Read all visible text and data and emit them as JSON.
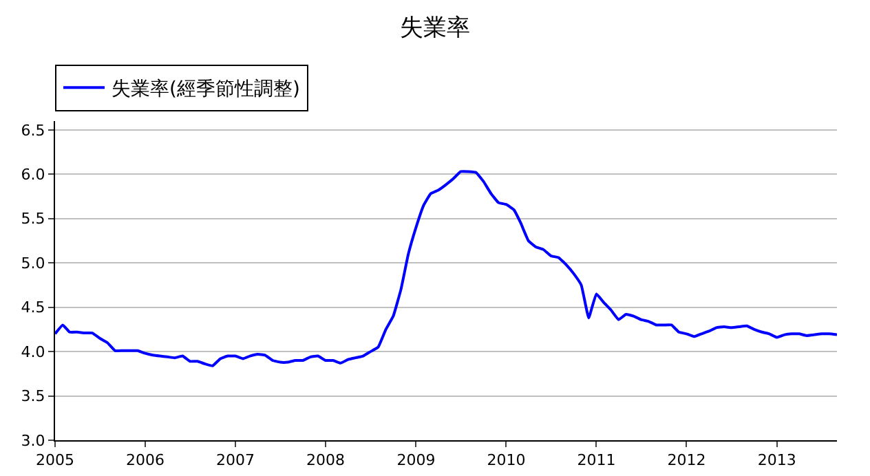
{
  "chart_data": {
    "type": "line",
    "title": "失業率",
    "legend": "top left",
    "grid": "y",
    "marker": "none",
    "line_style": "solid",
    "x": [
      "2005-01",
      "2005-02",
      "2005-03",
      "2005-04",
      "2005-05",
      "2005-06",
      "2005-07",
      "2005-08",
      "2005-09",
      "2005-10",
      "2005-11",
      "2005-12",
      "2006-01",
      "2006-02",
      "2006-03",
      "2006-04",
      "2006-05",
      "2006-06",
      "2006-07",
      "2006-08",
      "2006-09",
      "2006-10",
      "2006-11",
      "2006-12",
      "2007-01",
      "2007-02",
      "2007-03",
      "2007-04",
      "2007-05",
      "2007-06",
      "2007-07",
      "2007-08",
      "2007-09",
      "2007-10",
      "2007-11",
      "2007-12",
      "2008-01",
      "2008-02",
      "2008-03",
      "2008-04",
      "2008-05",
      "2008-06",
      "2008-07",
      "2008-08",
      "2008-09",
      "2008-10",
      "2008-11",
      "2008-12",
      "2009-01",
      "2009-02",
      "2009-03",
      "2009-04",
      "2009-05",
      "2009-06",
      "2009-07",
      "2009-08",
      "2009-09",
      "2009-10",
      "2009-11",
      "2009-12",
      "2010-01",
      "2010-02",
      "2010-03",
      "2010-04",
      "2010-05",
      "2010-06",
      "2010-07",
      "2010-08",
      "2010-09",
      "2010-10",
      "2010-11",
      "2010-12",
      "2011-01",
      "2011-02",
      "2011-03",
      "2011-04",
      "2011-05",
      "2011-06",
      "2011-07",
      "2011-08",
      "2011-09",
      "2011-10",
      "2011-11",
      "2011-12",
      "2012-01",
      "2012-02",
      "2012-03",
      "2012-04",
      "2012-05",
      "2012-06",
      "2012-07",
      "2012-08",
      "2012-09",
      "2012-10",
      "2012-11",
      "2012-12",
      "2013-01",
      "2013-02",
      "2013-03",
      "2013-04",
      "2013-05",
      "2013-06",
      "2013-07",
      "2013-08",
      "2013-09"
    ],
    "series": [
      {
        "name": "失業率(經季節性調整)",
        "color": "#0000ff",
        "values": [
          4.2,
          4.3,
          4.22,
          4.22,
          4.21,
          4.21,
          4.15,
          4.1,
          4.01,
          4.01,
          4.01,
          4.01,
          3.98,
          3.96,
          3.95,
          3.94,
          3.93,
          3.95,
          3.89,
          3.89,
          3.86,
          3.84,
          3.92,
          3.95,
          3.95,
          3.92,
          3.95,
          3.97,
          3.96,
          3.9,
          3.88,
          3.88,
          3.9,
          3.9,
          3.94,
          3.95,
          3.9,
          3.9,
          3.87,
          3.91,
          3.93,
          3.95,
          4.0,
          4.05,
          4.25,
          4.4,
          4.7,
          5.1,
          5.4,
          5.65,
          5.78,
          5.82,
          5.88,
          5.95,
          6.03,
          6.03,
          6.02,
          5.92,
          5.78,
          5.68,
          5.66,
          5.6,
          5.45,
          5.25,
          5.18,
          5.15,
          5.08,
          5.06,
          4.98,
          4.88,
          4.75,
          4.38,
          4.65,
          4.55,
          4.47,
          4.36,
          4.42,
          4.4,
          4.36,
          4.34,
          4.3,
          4.3,
          4.3,
          4.22,
          4.2,
          4.17,
          4.2,
          4.23,
          4.27,
          4.28,
          4.27,
          4.28,
          4.29,
          4.25,
          4.22,
          4.2,
          4.16,
          4.19,
          4.2,
          4.2,
          4.18,
          4.19,
          4.2,
          4.2,
          4.19
        ]
      }
    ],
    "xlim": [
      "2005-01",
      "2013-09"
    ],
    "xticks": [
      {
        "value": "2005-01",
        "label": "2005"
      },
      {
        "value": "2006-01",
        "label": "2006"
      },
      {
        "value": "2007-01",
        "label": "2007"
      },
      {
        "value": "2008-01",
        "label": "2008"
      },
      {
        "value": "2009-01",
        "label": "2009"
      },
      {
        "value": "2010-01",
        "label": "2010"
      },
      {
        "value": "2011-01",
        "label": "2011"
      },
      {
        "value": "2012-01",
        "label": "2012"
      },
      {
        "value": "2013-01",
        "label": "2013"
      }
    ],
    "ylim": [
      3.0,
      6.6
    ],
    "yticks": [
      {
        "value": 3.0,
        "label": "3.0"
      },
      {
        "value": 3.5,
        "label": "3.5"
      },
      {
        "value": 4.0,
        "label": "4.0"
      },
      {
        "value": 4.5,
        "label": "4.5"
      },
      {
        "value": 5.0,
        "label": "5.0"
      },
      {
        "value": 5.5,
        "label": "5.5"
      },
      {
        "value": 6.0,
        "label": "6.0"
      },
      {
        "value": 6.5,
        "label": "6.5"
      }
    ]
  }
}
